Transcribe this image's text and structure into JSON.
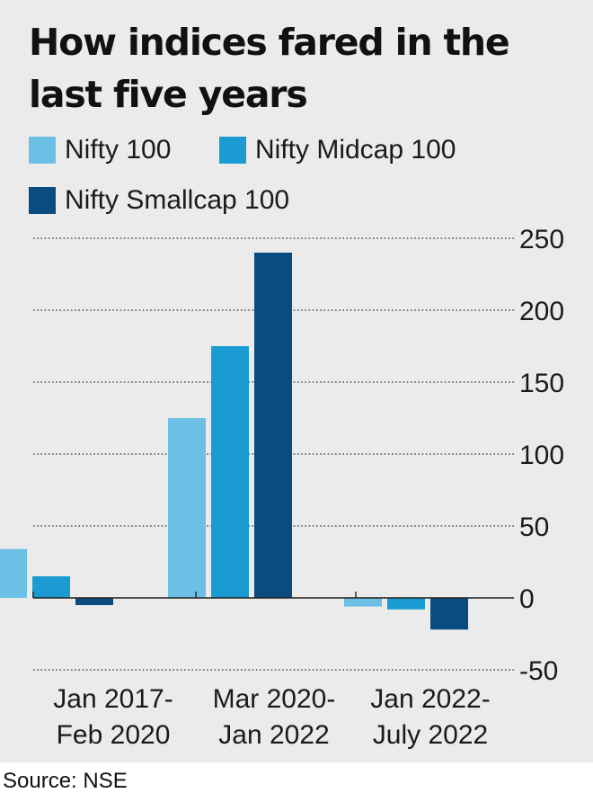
{
  "title": "How indices fared in the last five years",
  "source": "Source: NSE",
  "colors": {
    "background": "#ebebeb",
    "grid": "#333333",
    "text": "#1a1a1a"
  },
  "chart_data": {
    "type": "bar",
    "title": "How indices fared in the last five years",
    "xlabel": "",
    "ylabel": "",
    "categories": [
      [
        "Jan 2017-",
        "Feb 2020"
      ],
      [
        "Mar 2020-",
        "Jan 2022"
      ],
      [
        "Jan 2022-",
        "July 2022"
      ]
    ],
    "series": [
      {
        "name": "Nifty 100",
        "color": "#6cc0e5",
        "values": [
          34,
          125,
          -6
        ]
      },
      {
        "name": "Nifty Midcap 100",
        "color": "#1a9bd1",
        "values": [
          15,
          175,
          -8
        ]
      },
      {
        "name": "Nifty Smallcap 100",
        "color": "#0a4b80",
        "values": [
          -5,
          240,
          -22
        ]
      }
    ],
    "ylim": [
      -50,
      250
    ],
    "yticks": [
      250,
      200,
      150,
      100,
      50,
      0,
      -50
    ],
    "y_axis_position": "right",
    "grid": "dotted horizontal",
    "legend_position": "top-left"
  }
}
